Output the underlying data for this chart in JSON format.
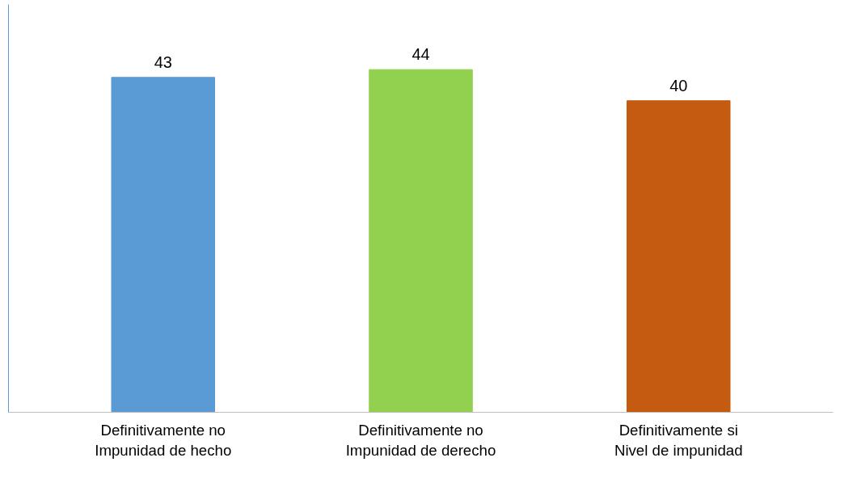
{
  "chart_data": {
    "type": "bar",
    "categories": [
      "Definitivamente no\nImpunidad de hecho",
      "Definitivamente no\nImpunidad de derecho",
      "Definitivamente si\nNivel de impunidad"
    ],
    "values": [
      43,
      44,
      40
    ],
    "colors": [
      "#5b9bd5",
      "#92d050",
      "#c55a11"
    ],
    "data_labels": true,
    "tick_labels": "x",
    "grid": false
  }
}
